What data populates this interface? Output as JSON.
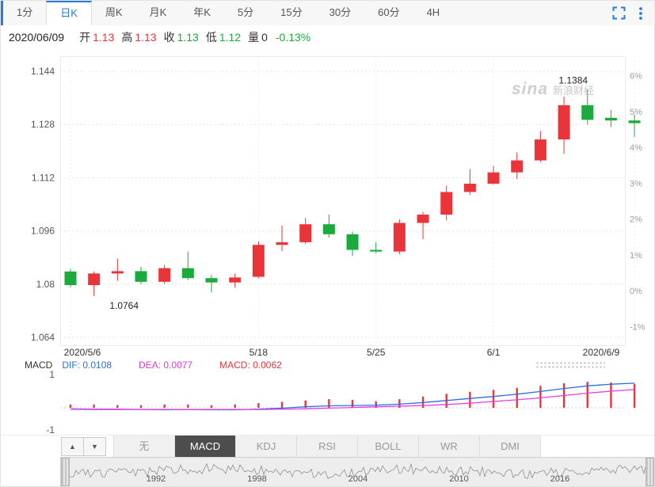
{
  "header": {
    "period_tabs": [
      {
        "key": "1min",
        "label": "1分",
        "active": false
      },
      {
        "key": "day",
        "label": "日K",
        "active": true
      },
      {
        "key": "week",
        "label": "周K",
        "active": false
      },
      {
        "key": "month",
        "label": "月K",
        "active": false
      },
      {
        "key": "year",
        "label": "年K",
        "active": false
      },
      {
        "key": "5min",
        "label": "5分",
        "active": false
      },
      {
        "key": "15min",
        "label": "15分",
        "active": false
      },
      {
        "key": "30min",
        "label": "30分",
        "active": false
      },
      {
        "key": "60min",
        "label": "60分",
        "active": false
      },
      {
        "key": "4h",
        "label": "4H",
        "active": false
      }
    ]
  },
  "quote_bar": {
    "date": "2020/06/09",
    "fields": [
      {
        "key": "open",
        "label": "开",
        "value": "1.13",
        "color": "#e9353a"
      },
      {
        "key": "high",
        "label": "高",
        "value": "1.13",
        "color": "#e9353a"
      },
      {
        "key": "close",
        "label": "收",
        "value": "1.13",
        "color": "#1caa3c"
      },
      {
        "key": "low",
        "label": "低",
        "value": "1.12",
        "color": "#1caa3c"
      },
      {
        "key": "volume",
        "label": "量",
        "value": "0",
        "color": "#333333"
      }
    ],
    "change": {
      "value": "-0.13%",
      "color": "#1caa3c"
    }
  },
  "watermark": {
    "brand": "sina",
    "suffix": "新浪财经"
  },
  "macd_header": {
    "title": "MACD",
    "items": [
      {
        "key": "dif",
        "label": "DIF: 0.0108",
        "color": "#2b6fe0"
      },
      {
        "key": "dea",
        "label": "DEA: 0.0077",
        "color": "#e83ae2"
      },
      {
        "key": "macd",
        "label": "MACD: 0.0062",
        "color": "#e9353a"
      }
    ]
  },
  "indicator_tabs": {
    "up": "▲",
    "down": "▼",
    "items": [
      {
        "key": "none",
        "label": "无",
        "active": false
      },
      {
        "key": "macd",
        "label": "MACD",
        "active": true
      },
      {
        "key": "kdj",
        "label": "KDJ",
        "active": false
      },
      {
        "key": "rsi",
        "label": "RSI",
        "active": false
      },
      {
        "key": "boll",
        "label": "BOLL",
        "active": false
      },
      {
        "key": "wr",
        "label": "WR",
        "active": false
      },
      {
        "key": "dmi",
        "label": "DMI",
        "active": false
      }
    ]
  },
  "timeline": {
    "years": [
      "1992",
      "1998",
      "2004",
      "2010",
      "2016"
    ]
  },
  "chart_data": [
    {
      "type": "candlestick",
      "title": "EUR 日K 2020/5/6 - 2020/6/9",
      "dates": [
        "5/6",
        "5/7",
        "5/8",
        "5/11",
        "5/12",
        "5/13",
        "5/14",
        "5/15",
        "5/18",
        "5/19",
        "5/20",
        "5/21",
        "5/22",
        "5/25",
        "5/26",
        "5/27",
        "5/28",
        "5/29",
        "6/1",
        "6/2",
        "6/3",
        "6/4",
        "6/5",
        "6/8",
        "6/9"
      ],
      "ohlc": [
        [
          1.0838,
          1.0846,
          1.079,
          1.0797
        ],
        [
          1.0797,
          1.0838,
          1.0764,
          1.0832
        ],
        [
          1.0832,
          1.0876,
          1.081,
          1.0839
        ],
        [
          1.0839,
          1.0852,
          1.08,
          1.0807
        ],
        [
          1.0807,
          1.0858,
          1.08,
          1.0848
        ],
        [
          1.0848,
          1.0898,
          1.0812,
          1.0818
        ],
        [
          1.0818,
          1.0828,
          1.0775,
          1.0805
        ],
        [
          1.0805,
          1.0832,
          1.0789,
          1.082
        ],
        [
          1.0822,
          1.0928,
          1.0818,
          1.0918
        ],
        [
          1.0918,
          1.0976,
          1.0899,
          1.0926
        ],
        [
          1.0926,
          1.0999,
          1.092,
          1.098
        ],
        [
          1.098,
          1.1009,
          1.094,
          1.095
        ],
        [
          1.095,
          1.0958,
          1.0885,
          1.0903
        ],
        [
          1.0903,
          1.0926,
          1.0893,
          1.0898
        ],
        [
          1.0898,
          1.0995,
          1.089,
          1.0984
        ],
        [
          1.0984,
          1.1017,
          1.0935,
          1.1009
        ],
        [
          1.1009,
          1.1096,
          1.0992,
          1.1077
        ],
        [
          1.1077,
          1.1146,
          1.1068,
          1.1102
        ],
        [
          1.1102,
          1.1155,
          1.11,
          1.1136
        ],
        [
          1.1136,
          1.1196,
          1.1116,
          1.1172
        ],
        [
          1.1172,
          1.126,
          1.1167,
          1.1235
        ],
        [
          1.1235,
          1.1364,
          1.1192,
          1.1338
        ],
        [
          1.1338,
          1.1384,
          1.128,
          1.1294
        ],
        [
          1.13,
          1.1324,
          1.1272,
          1.1292
        ],
        [
          1.1292,
          1.131,
          1.1242,
          1.1284
        ]
      ],
      "up_color": "#e9353a",
      "down_color": "#1caa3c",
      "ylim": [
        1.058,
        1.151
      ],
      "y_axis_left_ticks": [
        "1.144",
        "1.128",
        "1.112",
        "1.096",
        "1.08",
        "1.064"
      ],
      "y_axis_right_ticks": [
        "6%",
        "5%",
        "4%",
        "3%",
        "2%",
        "1%",
        "0%",
        "-1%"
      ],
      "right_axis_base": 1.078,
      "x_tick_indices": [
        0,
        8,
        13,
        18,
        24
      ],
      "x_tick_labels": [
        "2020/5/6",
        "5/18",
        "5/25",
        "6/1",
        "2020/6/9"
      ],
      "annotations": [
        {
          "index": 22,
          "text": "1.1384",
          "position": "above",
          "dx": -18
        },
        {
          "index": 1,
          "text": "1.0764",
          "position": "below",
          "dx": 38
        }
      ],
      "grid": true
    },
    {
      "type": "macd",
      "title": "MACD",
      "ylim": [
        -1,
        1
      ],
      "y_ticks": [
        1,
        -1
      ],
      "series": [
        {
          "name": "DIF",
          "color": "#2b6fe0",
          "values": [
            -0.04,
            -0.05,
            -0.05,
            -0.05,
            -0.06,
            -0.05,
            -0.06,
            -0.06,
            -0.04,
            -0.01,
            0.03,
            0.06,
            0.07,
            0.08,
            0.11,
            0.16,
            0.22,
            0.28,
            0.34,
            0.41,
            0.49,
            0.58,
            0.66,
            0.71,
            0.74
          ]
        },
        {
          "name": "DEA",
          "color": "#e83ae2",
          "values": [
            -0.03,
            -0.04,
            -0.04,
            -0.05,
            -0.05,
            -0.05,
            -0.05,
            -0.05,
            -0.05,
            -0.04,
            -0.03,
            -0.01,
            0.01,
            0.03,
            0.05,
            0.07,
            0.1,
            0.14,
            0.19,
            0.24,
            0.3,
            0.37,
            0.44,
            0.5,
            0.55
          ]
        }
      ],
      "histogram": {
        "name": "MACD",
        "color": "#e9353a",
        "values": [
          0.1,
          0.1,
          0.08,
          0.08,
          0.1,
          0.1,
          0.08,
          0.1,
          0.14,
          0.18,
          0.22,
          0.26,
          0.24,
          0.2,
          0.26,
          0.34,
          0.42,
          0.48,
          0.54,
          0.6,
          0.66,
          0.74,
          0.78,
          0.76,
          0.72
        ]
      },
      "readout": {
        "dif": 0.0108,
        "dea": 0.0077,
        "macd": 0.0062
      }
    }
  ]
}
